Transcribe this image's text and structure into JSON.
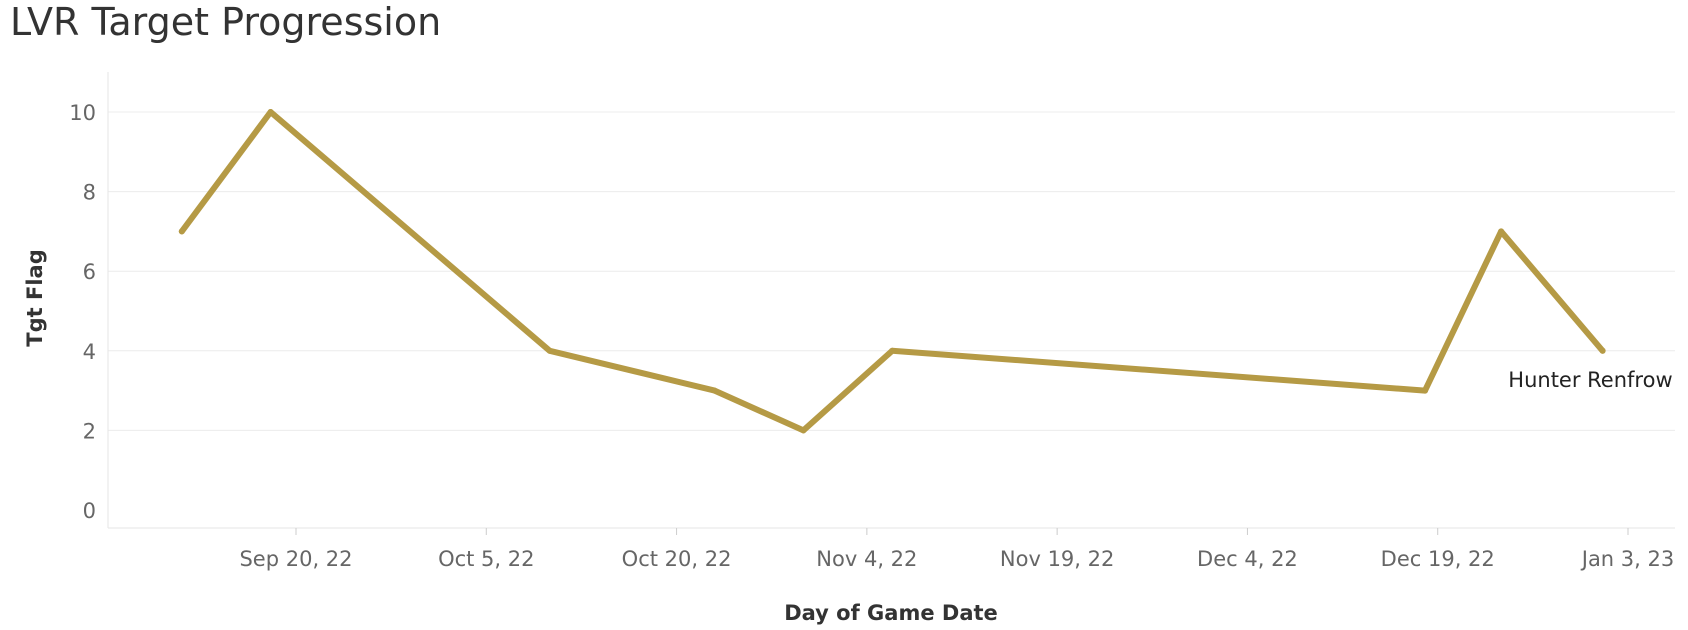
{
  "chart_data": {
    "type": "line",
    "title": "LVR Target Progression",
    "xlabel": "Day of Game Date",
    "ylabel": "Tgt Flag",
    "ylim": [
      0,
      10
    ],
    "y_ticks": [
      0,
      2,
      4,
      6,
      8,
      10
    ],
    "x_ticks": [
      "Sep 20, 22",
      "Oct 5, 22",
      "Oct 20, 22",
      "Nov 4, 22",
      "Nov 19, 22",
      "Dec 4, 22",
      "Dec 19, 22",
      "Jan 3, 23"
    ],
    "grid": true,
    "series": [
      {
        "name": "Hunter Renfrow",
        "color": "#B59A45",
        "points": [
          {
            "x": "Sep 11, 22",
            "y": 7
          },
          {
            "x": "Sep 18, 22",
            "y": 10
          },
          {
            "x": "Oct 10, 22",
            "y": 4
          },
          {
            "x": "Oct 23, 22",
            "y": 3
          },
          {
            "x": "Oct 30, 22",
            "y": 2
          },
          {
            "x": "Nov 6, 22",
            "y": 4
          },
          {
            "x": "Dec 18, 22",
            "y": 3
          },
          {
            "x": "Dec 24, 22",
            "y": 7
          },
          {
            "x": "Jan 1, 23",
            "y": 4
          }
        ]
      }
    ],
    "annotations": [
      {
        "text": "Hunter Renfrow",
        "series": 0,
        "point": "last"
      }
    ]
  }
}
